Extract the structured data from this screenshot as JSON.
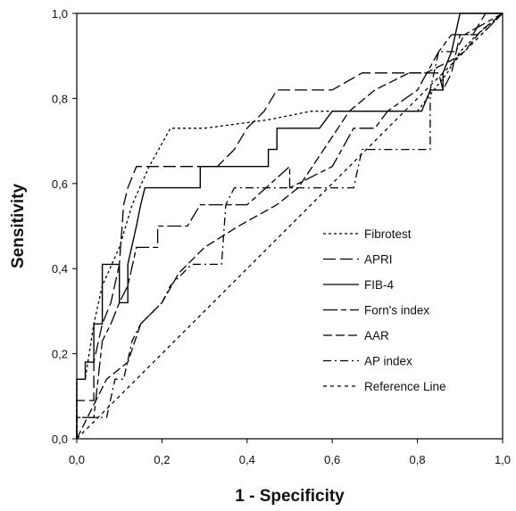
{
  "chart_data": {
    "type": "line",
    "xlabel": "1 - Specificity",
    "ylabel": "Sensitivity",
    "xlim": [
      0,
      1
    ],
    "ylim": [
      0,
      1
    ],
    "x_ticks": [
      "0,0",
      "0,2",
      "0,4",
      "0,6",
      "0,8",
      "1,0"
    ],
    "y_ticks": [
      "0,0",
      "0,2",
      "0,4",
      "0,6",
      "0,8",
      "1,0"
    ],
    "grid": false,
    "legend_position": "bottom-right",
    "series": [
      {
        "name": "Fibrotest",
        "dash": "short-dash",
        "points": [
          [
            0,
            0
          ],
          [
            0,
            0.14
          ],
          [
            0.02,
            0.14
          ],
          [
            0.04,
            0.27
          ],
          [
            0.06,
            0.36
          ],
          [
            0.1,
            0.45
          ],
          [
            0.13,
            0.55
          ],
          [
            0.17,
            0.64
          ],
          [
            0.22,
            0.73
          ],
          [
            0.3,
            0.73
          ],
          [
            0.45,
            0.75
          ],
          [
            0.55,
            0.77
          ],
          [
            0.7,
            0.77
          ],
          [
            0.8,
            0.77
          ],
          [
            0.87,
            0.86
          ],
          [
            0.9,
            0.91
          ],
          [
            0.94,
            0.95
          ],
          [
            1,
            1
          ]
        ]
      },
      {
        "name": "APRI",
        "dash": "long-dash",
        "points": [
          [
            0,
            0
          ],
          [
            0,
            0.09
          ],
          [
            0.04,
            0.09
          ],
          [
            0.04,
            0.18
          ],
          [
            0.06,
            0.27
          ],
          [
            0.08,
            0.32
          ],
          [
            0.1,
            0.41
          ],
          [
            0.11,
            0.55
          ],
          [
            0.12,
            0.59
          ],
          [
            0.14,
            0.64
          ],
          [
            0.33,
            0.64
          ],
          [
            0.37,
            0.68
          ],
          [
            0.4,
            0.73
          ],
          [
            0.44,
            0.77
          ],
          [
            0.47,
            0.82
          ],
          [
            0.6,
            0.82
          ],
          [
            0.67,
            0.86
          ],
          [
            0.85,
            0.86
          ],
          [
            0.86,
            0.82
          ],
          [
            0.88,
            0.86
          ],
          [
            0.9,
            0.95
          ],
          [
            0.93,
            0.95
          ],
          [
            0.96,
            1
          ],
          [
            1,
            1
          ]
        ]
      },
      {
        "name": "FIB-4",
        "dash": "solid",
        "points": [
          [
            0,
            0
          ],
          [
            0,
            0.14
          ],
          [
            0.02,
            0.14
          ],
          [
            0.02,
            0.18
          ],
          [
            0.04,
            0.18
          ],
          [
            0.04,
            0.27
          ],
          [
            0.06,
            0.27
          ],
          [
            0.06,
            0.41
          ],
          [
            0.1,
            0.41
          ],
          [
            0.1,
            0.32
          ],
          [
            0.12,
            0.32
          ],
          [
            0.12,
            0.41
          ],
          [
            0.14,
            0.5
          ],
          [
            0.15,
            0.55
          ],
          [
            0.16,
            0.59
          ],
          [
            0.29,
            0.59
          ],
          [
            0.29,
            0.64
          ],
          [
            0.4,
            0.64
          ],
          [
            0.45,
            0.64
          ],
          [
            0.45,
            0.68
          ],
          [
            0.47,
            0.68
          ],
          [
            0.47,
            0.73
          ],
          [
            0.57,
            0.73
          ],
          [
            0.6,
            0.77
          ],
          [
            0.81,
            0.77
          ],
          [
            0.83,
            0.82
          ],
          [
            0.86,
            0.82
          ],
          [
            0.86,
            0.86
          ],
          [
            0.88,
            0.91
          ],
          [
            0.9,
            1
          ],
          [
            0.93,
            1
          ],
          [
            1,
            1
          ]
        ]
      },
      {
        "name": "Forn's index",
        "dash": "long-short-dash",
        "points": [
          [
            0,
            0
          ],
          [
            0,
            0.05
          ],
          [
            0.04,
            0.05
          ],
          [
            0.06,
            0.23
          ],
          [
            0.08,
            0.27
          ],
          [
            0.1,
            0.32
          ],
          [
            0.12,
            0.36
          ],
          [
            0.14,
            0.45
          ],
          [
            0.19,
            0.45
          ],
          [
            0.19,
            0.5
          ],
          [
            0.26,
            0.5
          ],
          [
            0.29,
            0.55
          ],
          [
            0.35,
            0.55
          ],
          [
            0.4,
            0.55
          ],
          [
            0.5,
            0.64
          ],
          [
            0.5,
            0.59
          ],
          [
            0.6,
            0.64
          ],
          [
            0.65,
            0.73
          ],
          [
            0.7,
            0.73
          ],
          [
            0.73,
            0.77
          ],
          [
            0.8,
            0.82
          ],
          [
            0.85,
            0.91
          ],
          [
            0.88,
            0.95
          ],
          [
            0.91,
            0.95
          ],
          [
            1,
            1
          ]
        ]
      },
      {
        "name": "AAR",
        "dash": "long-dash-dense",
        "points": [
          [
            0,
            0
          ],
          [
            0.07,
            0.14
          ],
          [
            0.12,
            0.18
          ],
          [
            0.15,
            0.27
          ],
          [
            0.2,
            0.32
          ],
          [
            0.24,
            0.39
          ],
          [
            0.3,
            0.45
          ],
          [
            0.38,
            0.5
          ],
          [
            0.47,
            0.55
          ],
          [
            0.52,
            0.59
          ],
          [
            0.58,
            0.68
          ],
          [
            0.64,
            0.77
          ],
          [
            0.7,
            0.82
          ],
          [
            0.78,
            0.86
          ],
          [
            0.82,
            0.86
          ],
          [
            0.88,
            0.89
          ],
          [
            0.91,
            0.91
          ],
          [
            0.95,
            0.96
          ],
          [
            1,
            1
          ]
        ]
      },
      {
        "name": "AP index",
        "dash": "dash-dot",
        "points": [
          [
            0,
            0
          ],
          [
            0,
            0.05
          ],
          [
            0.07,
            0.05
          ],
          [
            0.09,
            0.14
          ],
          [
            0.11,
            0.14
          ],
          [
            0.13,
            0.23
          ],
          [
            0.15,
            0.27
          ],
          [
            0.2,
            0.32
          ],
          [
            0.22,
            0.36
          ],
          [
            0.27,
            0.41
          ],
          [
            0.34,
            0.41
          ],
          [
            0.35,
            0.55
          ],
          [
            0.37,
            0.59
          ],
          [
            0.65,
            0.59
          ],
          [
            0.67,
            0.68
          ],
          [
            0.83,
            0.68
          ],
          [
            0.83,
            0.82
          ],
          [
            0.85,
            0.91
          ],
          [
            0.89,
            0.91
          ],
          [
            0.91,
            0.95
          ],
          [
            0.95,
            0.95
          ],
          [
            1,
            1
          ]
        ]
      },
      {
        "name": "Reference Line",
        "dash": "fine-dash",
        "points": [
          [
            0,
            0
          ],
          [
            1,
            1
          ]
        ]
      }
    ]
  }
}
